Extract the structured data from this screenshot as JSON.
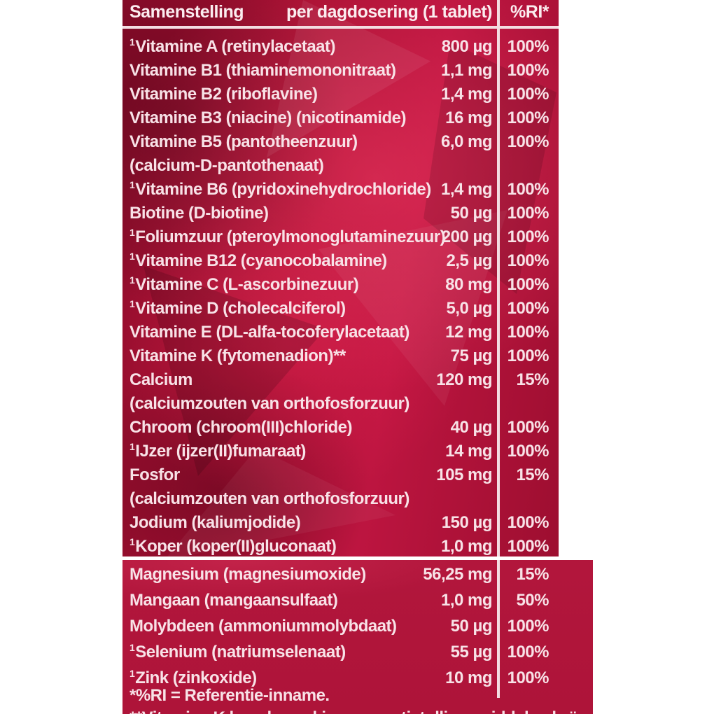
{
  "colors": {
    "panel_red": "#b2163c",
    "panel_dark_red": "#8e0c2b",
    "panel_bright_red": "#c81a45",
    "text_pale_pink": "#f8e2e7",
    "divider_white": "#f3dde2",
    "page_background": "#ffffff"
  },
  "table": {
    "headers": [
      "Samenstelling",
      "per dagdosering (1 tablet)",
      "%RI*"
    ],
    "main_rows": [
      {
        "sup": "1",
        "name": "Vitamine A (retinylacetaat)",
        "amount": "800 µg",
        "ri": "100%"
      },
      {
        "sup": "",
        "name": "Vitamine B1 (thiaminemononitraat)",
        "amount": "1,1 mg",
        "ri": "100%"
      },
      {
        "sup": "",
        "name": "Vitamine B2 (riboflavine)",
        "amount": "1,4 mg",
        "ri": "100%"
      },
      {
        "sup": "",
        "name": "Vitamine B3 (niacine) (nicotinamide)",
        "amount": "16 mg",
        "ri": "100%"
      },
      {
        "sup": "",
        "name": "Vitamine B5 (pantotheenzuur)",
        "amount": "6,0 mg",
        "ri": "100%"
      },
      {
        "sup": "",
        "name": "(calcium-D-pantothenaat)",
        "amount": "",
        "ri": ""
      },
      {
        "sup": "1",
        "name": "Vitamine B6 (pyridoxinehydrochloride)",
        "amount": "1,4 mg",
        "ri": "100%"
      },
      {
        "sup": "",
        "name": "Biotine (D-biotine)",
        "amount": "50 µg",
        "ri": "100%"
      },
      {
        "sup": "1",
        "name": "Foliumzuur (pteroylmonoglutaminezuur)",
        "amount": "200 µg",
        "ri": "100%"
      },
      {
        "sup": "1",
        "name": "Vitamine B12 (cyanocobalamine)",
        "amount": "2,5 µg",
        "ri": "100%"
      },
      {
        "sup": "1",
        "name": "Vitamine C (L-ascorbinezuur)",
        "amount": "80 mg",
        "ri": "100%"
      },
      {
        "sup": "1",
        "name": "Vitamine D (cholecalciferol)",
        "amount": "5,0 µg",
        "ri": "100%"
      },
      {
        "sup": "",
        "name": "Vitamine E (DL-alfa-tocoferylacetaat)",
        "amount": "12 mg",
        "ri": "100%"
      },
      {
        "sup": "",
        "name": "Vitamine K (fytomenadion)**",
        "amount": "75 µg",
        "ri": "100%"
      },
      {
        "sup": "",
        "name": "Calcium",
        "amount": "120 mg",
        "ri": "15%"
      },
      {
        "sup": "",
        "name": "(calciumzouten van orthofosforzuur)",
        "amount": "",
        "ri": ""
      },
      {
        "sup": "",
        "name": "Chroom (chroom(III)chloride)",
        "amount": "40 µg",
        "ri": "100%"
      },
      {
        "sup": "1",
        "name": "IJzer (ijzer(II)fumaraat)",
        "amount": "14 mg",
        "ri": "100%"
      },
      {
        "sup": "",
        "name": "Fosfor",
        "amount": "105 mg",
        "ri": "15%"
      },
      {
        "sup": "",
        "name": "(calciumzouten van orthofosforzuur)",
        "amount": "",
        "ri": ""
      },
      {
        "sup": "",
        "name": "Jodium (kaliumjodide)",
        "amount": "150 µg",
        "ri": "100%"
      },
      {
        "sup": "1",
        "name": "Koper (koper(II)gluconaat)",
        "amount": "1,0 mg",
        "ri": "100%"
      }
    ],
    "extra_rows": [
      {
        "sup": "",
        "name": "Magnesium (magnesiumoxide)",
        "amount": "56,25 mg",
        "ri": "15%"
      },
      {
        "sup": "",
        "name": "Mangaan (mangaansulfaat)",
        "amount": "1,0 mg",
        "ri": "50%"
      },
      {
        "sup": "",
        "name": "Molybdeen (ammoniummolybdaat)",
        "amount": "50 µg",
        "ri": "100%"
      },
      {
        "sup": "1",
        "name": "Selenium (natriumselenaat)",
        "amount": "55 µg",
        "ri": "100%"
      },
      {
        "sup": "1",
        "name": "Zink (zinkoxide)",
        "amount": "10 mg",
        "ri": "100%"
      }
    ]
  },
  "footnotes": [
    "*%RI = Referentie-inname.",
    "**Vitamine K kan de werking van antistollingsmiddelen beïnvloeden"
  ]
}
